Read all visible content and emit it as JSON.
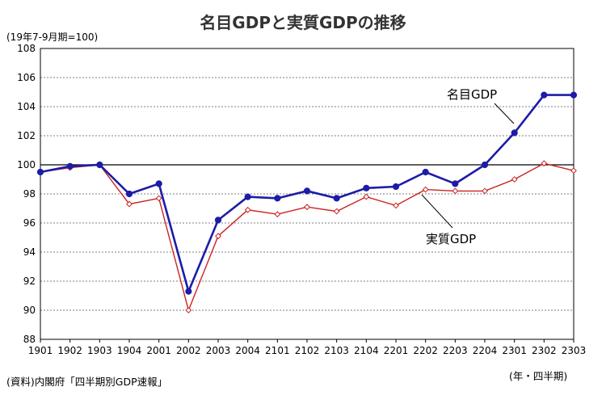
{
  "chart_data": {
    "type": "line",
    "title": "名目GDPと実質GDPの推移",
    "ylabel": "(19年7-9月期=100)",
    "xlabel": "(年・四半期)",
    "source": "(資料)内閣府「四半期別GDP速報」",
    "ylim": [
      88,
      108
    ],
    "yticks": [
      88,
      90,
      92,
      94,
      96,
      98,
      100,
      102,
      104,
      106,
      108
    ],
    "baseline": 100,
    "categories": [
      "1901",
      "1902",
      "1903",
      "1904",
      "2001",
      "2002",
      "2003",
      "2004",
      "2101",
      "2102",
      "2103",
      "2104",
      "2201",
      "2202",
      "2203",
      "2204",
      "2301",
      "2302",
      "2303"
    ],
    "series": [
      {
        "name": "名目GDP",
        "color": "#1c1ca8",
        "marker": "filled-circle",
        "values": [
          99.5,
          99.9,
          100.0,
          98.0,
          98.7,
          91.3,
          96.2,
          97.8,
          97.7,
          98.2,
          97.7,
          98.4,
          98.5,
          99.5,
          98.7,
          100.0,
          102.2,
          104.8,
          104.8
        ]
      },
      {
        "name": "実質GDP",
        "color": "#cc2222",
        "marker": "open-diamond",
        "values": [
          99.5,
          99.8,
          100.0,
          97.3,
          97.7,
          90.0,
          95.1,
          96.9,
          96.6,
          97.1,
          96.8,
          97.8,
          97.2,
          98.3,
          98.2,
          98.2,
          99.0,
          100.1,
          99.6
        ]
      }
    ]
  }
}
